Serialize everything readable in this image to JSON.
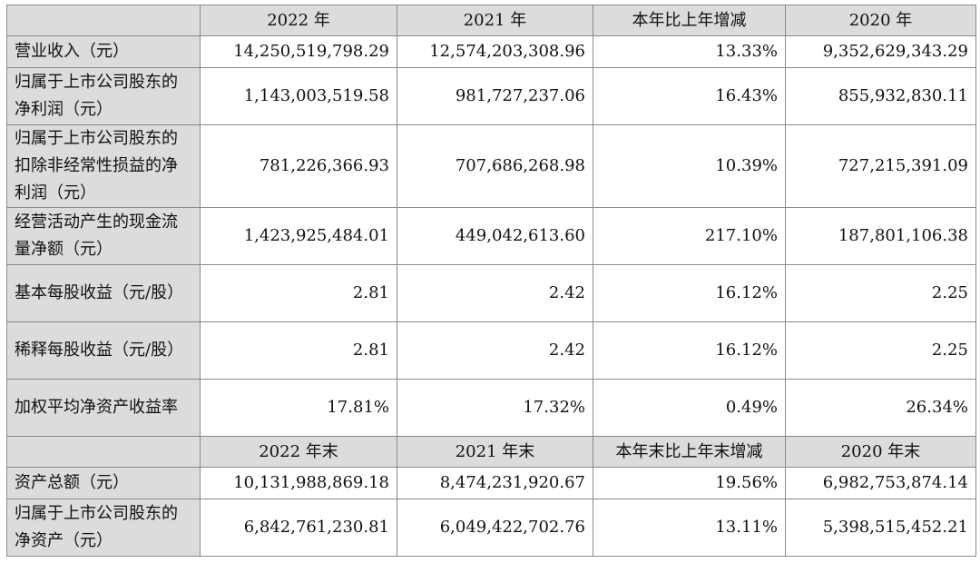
{
  "header1": [
    "",
    "2022 年",
    "2021 年",
    "本年比上年增减",
    "2020 年"
  ],
  "rows1": [
    {
      "label": "营业收入（元）",
      "values": [
        "14,250,519,798.29",
        "12,574,203,308.96",
        "13.33%",
        "9,352,629,343.29"
      ]
    },
    {
      "label": "归属于上市公司股东的净利润（元）",
      "values": [
        "1,143,003,519.58",
        "981,727,237.06",
        "16.43%",
        "855,932,830.11"
      ]
    },
    {
      "label": "归属于上市公司股东的扣除非经常性损益的净利润（元）",
      "values": [
        "781,226,366.93",
        "707,686,268.98",
        "10.39%",
        "727,215,391.09"
      ]
    },
    {
      "label": "经营活动产生的现金流量净额（元）",
      "values": [
        "1,423,925,484.01",
        "449,042,613.60",
        "217.10%",
        "187,801,106.38"
      ]
    },
    {
      "label": "基本每股收益（元/股）",
      "values": [
        "2.81",
        "2.42",
        "16.12%",
        "2.25"
      ]
    },
    {
      "label": "稀释每股收益（元/股）",
      "values": [
        "2.81",
        "2.42",
        "16.12%",
        "2.25"
      ]
    },
    {
      "label": "加权平均净资产收益率",
      "values": [
        "17.81%",
        "17.32%",
        "0.49%",
        "26.34%"
      ]
    }
  ],
  "header2": [
    "",
    "2022 年末",
    "2021 年末",
    "本年末比上年末增减",
    "2020 年末"
  ],
  "rows2": [
    {
      "label": "资产总额（元）",
      "values": [
        "10,131,988,869.18",
        "8,474,231,920.67",
        "19.56%",
        "6,982,753,874.14"
      ]
    },
    {
      "label": "归属于上市公司股东的净资产（元）",
      "values": [
        "6,842,761,230.81",
        "6,049,422,702.76",
        "13.11%",
        "5,398,515,452.21"
      ]
    }
  ]
}
